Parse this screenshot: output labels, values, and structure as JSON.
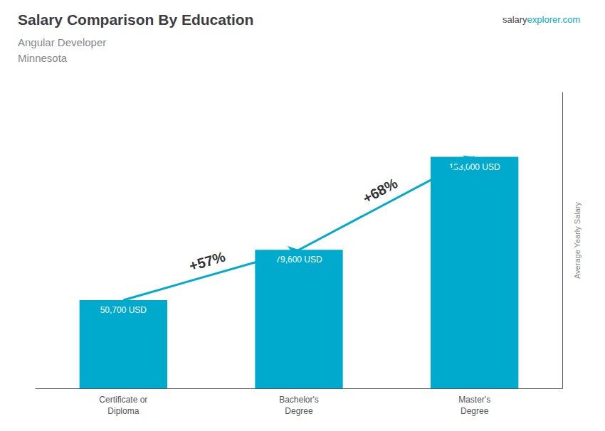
{
  "chart_data": {
    "type": "bar",
    "title": "Salary Comparison By Education",
    "subtitle": [
      "Angular Developer",
      "Minnesota"
    ],
    "website": [
      "salary",
      "explorer.com"
    ],
    "ylabel": "Average Yearly Salary",
    "categories": [
      "Certificate or\nDiploma",
      "Bachelor's\nDegree",
      "Master's\nDegree"
    ],
    "values": [
      50700,
      79600,
      133000
    ],
    "value_labels": [
      "50,700 USD",
      "79,600 USD",
      "133,000 USD"
    ],
    "data_labels": true,
    "color": "#00aacc",
    "annotations": [
      {
        "text": "+57%",
        "from": "Certificate or\nDiploma",
        "to": "Bachelor's\nDegree"
      },
      {
        "text": "+68%",
        "from": "Bachelor's\nDegree",
        "to": "Master's\nDegree"
      }
    ],
    "ylim": [
      0,
      170000
    ],
    "tick_labels": "x",
    "grid": false
  }
}
